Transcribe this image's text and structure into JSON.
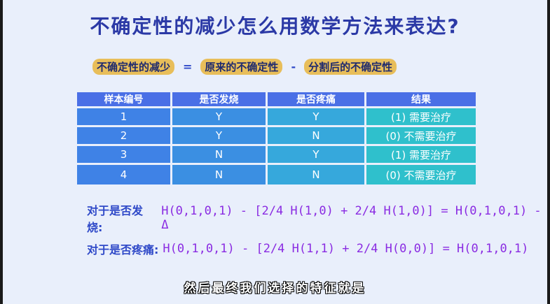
{
  "title": "不确定性的减少怎么用数学方法来表达?",
  "equation": {
    "lhs": "不确定性的减少",
    "eq": "=",
    "term1": "原来的不确定性",
    "minus": "-",
    "term2": "分割后的不确定性"
  },
  "table": {
    "headers": [
      "样本编号",
      "是否发烧",
      "是否疼痛",
      "结果"
    ],
    "rows": [
      [
        "1",
        "Y",
        "Y",
        "(1) 需要治疗"
      ],
      [
        "2",
        "Y",
        "N",
        "(0) 不需要治疗"
      ],
      [
        "3",
        "N",
        "Y",
        "(1) 需要治疗"
      ],
      [
        "4",
        "N",
        "N",
        "(0) 不需要治疗"
      ]
    ]
  },
  "formulas": [
    {
      "label": "对于是否发烧:",
      "expr": "H(0,1,0,1) - [2/4 H(1,0) + 2/4 H(1,0)] = H(0,1,0,1) - Δ"
    },
    {
      "label": "对于是否疼痛:",
      "expr": "H(0,1,0,1) - [2/4 H(1,1) + 2/4 H(0,0)] = H(0,1,0,1)"
    }
  ],
  "subtitle": "然后最终我们选择的特征就是",
  "colors": {
    "title": "#2b39a6",
    "highlight": "#e8be5a",
    "formula": "#8a2be2",
    "table_header": "#4a6fe6"
  }
}
